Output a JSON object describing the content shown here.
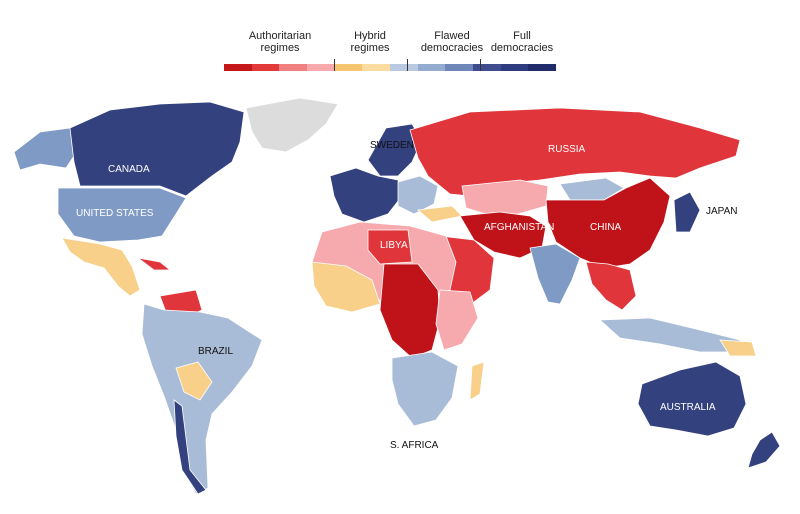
{
  "legend": {
    "categories": [
      {
        "label": "Authoritarian\nregimes",
        "colors": [
          "#c6171a",
          "#e23a3a",
          "#f08080"
        ]
      },
      {
        "label": "Hybrid\nregimes",
        "colors": [
          "#f7a9ad",
          "#f6c56f",
          "#fcdca1"
        ]
      },
      {
        "label": "Flawed\ndemocracies",
        "colors": [
          "#b9c9e0",
          "#94abd0",
          "#6f86b8"
        ]
      },
      {
        "label": "Full\ndemocracies",
        "colors": [
          "#3f4d8f",
          "#2e3b7e",
          "#1f2b6b"
        ]
      }
    ]
  },
  "labels": {
    "canada": "CANADA",
    "united_states": "UNITED STATES",
    "brazil": "BRAZIL",
    "sweden": "SWEDEN",
    "russia": "RUSSIA",
    "libya": "LIBYA",
    "afghanistan": "AFGHANISTAN",
    "china": "CHINA",
    "japan": "JAPAN",
    "australia": "AUSTRALIA",
    "s_africa": "S. AFRICA"
  },
  "colors": {
    "no_data": "#dcdcdc",
    "full": "#34417f",
    "flawed": "#a9bcd7",
    "flawed_mid": "#7f9ac4",
    "hybrid_yellow": "#f8d08a",
    "hybrid_pink": "#f7aaae",
    "auth_light": "#ec5b5b",
    "auth_mid": "#e0353a",
    "auth_dark": "#bf1319"
  }
}
